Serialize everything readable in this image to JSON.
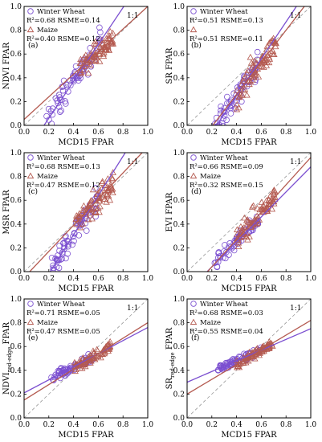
{
  "colors": {
    "wheat": "#7b4fd0",
    "maize": "#b45a50",
    "one_to_one": "#999999",
    "axis": "#000000"
  },
  "chart_data": [
    {
      "type": "scatter",
      "panel_label": "(a)",
      "xlabel": "MCD15 FPAR",
      "ylabel": "NDVI FPAR",
      "ylabel_sub": "",
      "ylabel_suffix": "",
      "xlim": [
        0,
        1
      ],
      "ylim": [
        0,
        1
      ],
      "xticks": [
        "0.0",
        "0.2",
        "0.4",
        "0.6",
        "0.8",
        "1.0"
      ],
      "yticks": [
        "0.0",
        "0.2",
        "0.4",
        "0.6",
        "0.8",
        "1.0"
      ],
      "one_to_one_label": "1:1",
      "legend": {
        "wheat_name": "Winter Wheat",
        "wheat_stats": "R²=0.68 RSME=0.14",
        "maize_name": "Maize",
        "maize_stats": "R²=0.40 RSME=0.12"
      },
      "wheat_fit": {
        "slope": 1.55,
        "intercept": -0.25
      },
      "maize_fit": {
        "slope": 0.95,
        "intercept": 0.05
      }
    },
    {
      "type": "scatter",
      "panel_label": "(b)",
      "xlabel": "MCD15 FPAR",
      "ylabel": "SR FPAR",
      "ylabel_sub": "",
      "ylabel_suffix": "",
      "xlim": [
        0,
        1
      ],
      "ylim": [
        0,
        1
      ],
      "xticks": [
        "0.0",
        "0.2",
        "0.4",
        "0.6",
        "0.8",
        "1.0"
      ],
      "yticks": [
        "0.0",
        "0.2",
        "0.4",
        "0.6",
        "0.8",
        "1.0"
      ],
      "one_to_one_label": "1:1",
      "legend": {
        "wheat_name": "Winter Wheat",
        "wheat_stats": "R²=0.51 RSME=0.13",
        "maize_name": "",
        "maize_stats": "R²=0.51 RSME=0.11"
      },
      "wheat_fit": {
        "slope": 1.55,
        "intercept": -0.37
      },
      "maize_fit": {
        "slope": 1.35,
        "intercept": -0.28
      }
    },
    {
      "type": "scatter",
      "panel_label": "(c)",
      "xlabel": "MCD15 FPAR",
      "ylabel": "MSR FPAR",
      "ylabel_sub": "",
      "ylabel_suffix": "",
      "xlim": [
        0,
        1
      ],
      "ylim": [
        0,
        1
      ],
      "xticks": [
        "0.0",
        "0.2",
        "0.4",
        "0.6",
        "0.8",
        "1.0"
      ],
      "yticks": [
        "0.0",
        "0.2",
        "0.4",
        "0.6",
        "0.8",
        "1.0"
      ],
      "one_to_one_label": "1:1",
      "legend": {
        "wheat_name": "Winter Wheat",
        "wheat_stats": "R²=0.68 RSME=0.13",
        "maize_name": "Maize",
        "maize_stats": "R²=0.47 RSME=0.12"
      },
      "wheat_fit": {
        "slope": 1.65,
        "intercept": -0.35
      },
      "maize_fit": {
        "slope": 1.1,
        "intercept": -0.05
      }
    },
    {
      "type": "scatter",
      "panel_label": "(d)",
      "xlabel": "MCD15 FPAR",
      "ylabel": "EVI FPAR",
      "ylabel_sub": "",
      "ylabel_suffix": "",
      "xlim": [
        0,
        1
      ],
      "ylim": [
        0,
        1
      ],
      "xticks": [
        "0.0",
        "0.2",
        "0.4",
        "0.6",
        "0.8",
        "1.0"
      ],
      "yticks": [
        "0.0",
        "0.2",
        "0.4",
        "0.6",
        "0.8",
        "1.0"
      ],
      "one_to_one_label": "1:1",
      "legend": {
        "wheat_name": "Winter Wheat",
        "wheat_stats": "R²=0.66 RSME=0.09",
        "maize_name": "Maize",
        "maize_stats": "R²=0.32 RSME=0.15"
      },
      "wheat_fit": {
        "slope": 1.05,
        "intercept": -0.17
      },
      "maize_fit": {
        "slope": 1.15,
        "intercept": -0.19
      }
    },
    {
      "type": "scatter",
      "panel_label": "(e)",
      "xlabel": "MCD15 FPAR",
      "ylabel": "NDVI",
      "ylabel_sub": "red-edge",
      "ylabel_suffix": " FPAR",
      "xlim": [
        0,
        1
      ],
      "ylim": [
        0,
        1
      ],
      "xticks": [
        "0.0",
        "0.2",
        "0.4",
        "0.6",
        "0.8",
        "1.0"
      ],
      "yticks": [
        "0.0",
        "0.2",
        "0.4",
        "0.6",
        "0.8",
        "1.0"
      ],
      "one_to_one_label": "1:1",
      "legend": {
        "wheat_name": "Winter Wheat",
        "wheat_stats": "R²=0.71 RSME=0.05",
        "maize_name": "Maize",
        "maize_stats": "R²=0.47 RSME=0.05"
      },
      "wheat_fit": {
        "slope": 0.55,
        "intercept": 0.21
      },
      "maize_fit": {
        "slope": 0.65,
        "intercept": 0.15
      }
    },
    {
      "type": "scatter",
      "panel_label": "(f)",
      "xlabel": "MCD15 FPAR",
      "ylabel": "SR",
      "ylabel_sub": "red-edge",
      "ylabel_suffix": " FPAR",
      "xlim": [
        0,
        1
      ],
      "ylim": [
        0,
        1
      ],
      "xticks": [
        "0.0",
        "0.2",
        "0.4",
        "0.6",
        "0.8",
        "1.0"
      ],
      "yticks": [
        "0.0",
        "0.2",
        "0.4",
        "0.6",
        "0.8",
        "1.0"
      ],
      "one_to_one_label": "1:1",
      "legend": {
        "wheat_name": "Winter Wheat",
        "wheat_stats": "R²=0.68 RSME=0.03",
        "maize_name": "Maize",
        "maize_stats": "R²=0.55 RSME=0.04"
      },
      "wheat_fit": {
        "slope": 0.45,
        "intercept": 0.3
      },
      "maize_fit": {
        "slope": 0.62,
        "intercept": 0.2
      }
    }
  ]
}
